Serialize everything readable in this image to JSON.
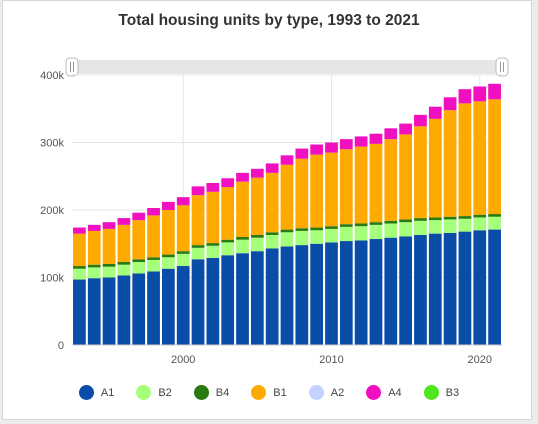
{
  "chart_data": {
    "type": "bar",
    "stacked": true,
    "title": "Total housing units by type, 1993 to 2021",
    "xlabel": "",
    "ylabel": "",
    "ylim": [
      0,
      400000
    ],
    "y_ticks": [
      0,
      100000,
      200000,
      300000,
      400000
    ],
    "y_tick_labels": [
      "0",
      "100k",
      "200k",
      "300k",
      "400k"
    ],
    "x_ticks": [
      2000,
      2010,
      2020
    ],
    "x_tick_labels": [
      "2000",
      "2010",
      "2020"
    ],
    "grid": true,
    "legend_position": "bottom",
    "categories": [
      1993,
      1994,
      1995,
      1996,
      1997,
      1998,
      1999,
      2000,
      2001,
      2002,
      2003,
      2004,
      2005,
      2006,
      2007,
      2008,
      2009,
      2010,
      2011,
      2012,
      2013,
      2014,
      2015,
      2016,
      2017,
      2018,
      2019,
      2020,
      2021
    ],
    "series": [
      {
        "name": "A1",
        "color": "#0a4da8",
        "values": [
          97000,
          99000,
          100000,
          103000,
          106000,
          109000,
          113000,
          117000,
          127000,
          129000,
          133000,
          136000,
          139000,
          143000,
          146000,
          148000,
          150000,
          152000,
          154000,
          155000,
          157000,
          159000,
          161000,
          163000,
          165000,
          166000,
          168000,
          170000,
          171000
        ]
      },
      {
        "name": "B2",
        "color": "#a6ff7a",
        "values": [
          16000,
          16000,
          16000,
          16000,
          17000,
          17000,
          17000,
          18000,
          17000,
          18000,
          19000,
          20000,
          20000,
          20000,
          21000,
          21000,
          20000,
          20000,
          21000,
          21000,
          21000,
          21000,
          21000,
          21000,
          20000,
          20000,
          19000,
          19000,
          19000
        ]
      },
      {
        "name": "B4",
        "color": "#2a7a12",
        "values": [
          4000,
          4000,
          4000,
          4000,
          4000,
          4000,
          4000,
          4000,
          4000,
          4000,
          4000,
          4000,
          4000,
          4000,
          4000,
          4000,
          4000,
          4000,
          4000,
          4000,
          4000,
          4000,
          4000,
          4000,
          4000,
          4000,
          4000,
          4000,
          4000
        ]
      },
      {
        "name": "B1",
        "color": "#ffaa00",
        "values": [
          48000,
          50000,
          52000,
          55000,
          58000,
          62000,
          66000,
          68000,
          74000,
          76000,
          78000,
          82000,
          85000,
          88000,
          96000,
          103000,
          108000,
          109000,
          111000,
          114000,
          116000,
          121000,
          126000,
          136000,
          146000,
          158000,
          167000,
          168000,
          170000
        ]
      },
      {
        "name": "A2",
        "color": "#c3d2ff",
        "values": [
          0,
          0,
          0,
          0,
          0,
          0,
          0,
          0,
          0,
          0,
          0,
          0,
          0,
          0,
          0,
          0,
          0,
          0,
          0,
          0,
          0,
          0,
          0,
          0,
          0,
          0,
          0,
          0,
          0
        ]
      },
      {
        "name": "A4",
        "color": "#f010c0",
        "values": [
          9000,
          9000,
          10000,
          10000,
          11000,
          11000,
          12000,
          12000,
          13000,
          13000,
          13000,
          13000,
          13000,
          14000,
          14000,
          15000,
          15000,
          15000,
          15000,
          15000,
          15000,
          16000,
          16000,
          17000,
          18000,
          19000,
          21000,
          22000,
          23000
        ]
      },
      {
        "name": "B3",
        "color": "#50e61e",
        "values": [
          0,
          0,
          0,
          0,
          0,
          0,
          0,
          0,
          0,
          0,
          0,
          0,
          0,
          0,
          0,
          0,
          0,
          0,
          0,
          0,
          0,
          0,
          0,
          0,
          0,
          0,
          0,
          0,
          0
        ]
      }
    ]
  }
}
